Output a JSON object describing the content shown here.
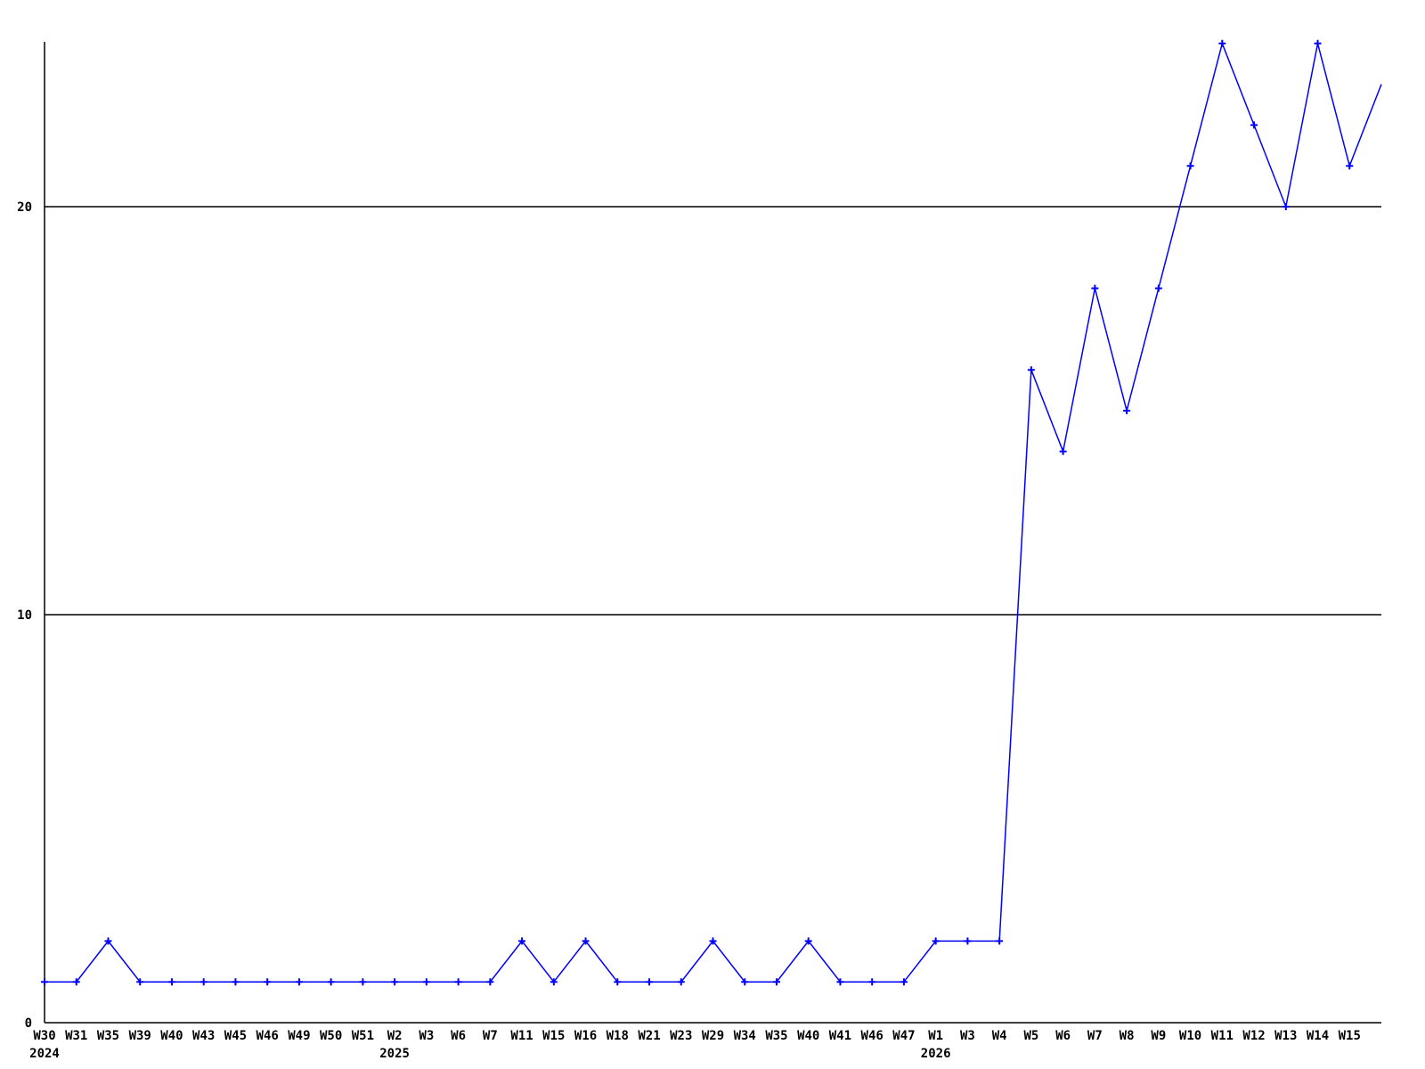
{
  "chart_data": {
    "type": "line",
    "title": "",
    "xlabel": "",
    "ylabel": "",
    "legend": "none",
    "grid": "horizontal gridlines at y=10 and y=20",
    "line_color": "#0000ff",
    "axis_color": "#000000",
    "background_color": "#ffffff",
    "marker": "plus",
    "ylim": [
      0,
      24
    ],
    "yticks": [
      {
        "value": 0,
        "label": "0"
      },
      {
        "value": 10,
        "label": "10"
      },
      {
        "value": 20,
        "label": "20"
      }
    ],
    "categories": [
      "W30",
      "W31",
      "W35",
      "W39",
      "W40",
      "W43",
      "W45",
      "W46",
      "W49",
      "W50",
      "W51",
      "W2",
      "W3",
      "W6",
      "W7",
      "W11",
      "W15",
      "W16",
      "W18",
      "W21",
      "W23",
      "W29",
      "W34",
      "W35",
      "W40",
      "W41",
      "W46",
      "W47",
      "W1",
      "W3",
      "W4",
      "W5",
      "W6",
      "W7",
      "W8",
      "W9",
      "W10",
      "W11",
      "W12",
      "W13",
      "W14",
      "W15"
    ],
    "year_markers": [
      {
        "index": 0,
        "label": "2024"
      },
      {
        "index": 11,
        "label": "2025"
      },
      {
        "index": 28,
        "label": "2026"
      }
    ],
    "values": [
      1,
      1,
      2,
      1,
      1,
      1,
      1,
      1,
      1,
      1,
      1,
      1,
      1,
      1,
      1,
      2,
      1,
      2,
      1,
      1,
      1,
      2,
      1,
      1,
      2,
      1,
      1,
      1,
      2,
      2,
      2,
      16,
      14,
      18,
      15,
      18,
      21,
      24,
      22,
      20,
      24,
      21
    ],
    "clipped_end_value": 23
  }
}
